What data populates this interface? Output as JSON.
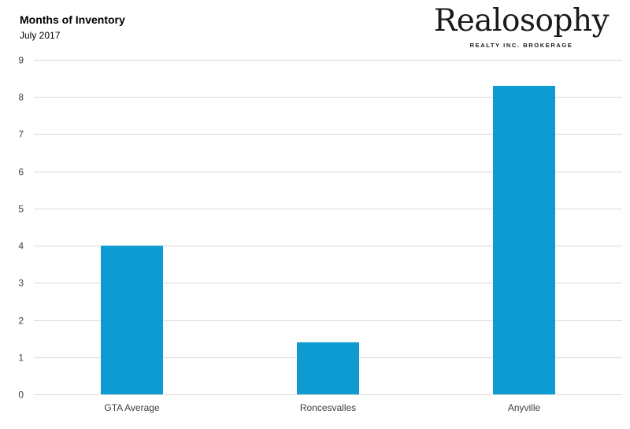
{
  "brand": {
    "name": "Realosophy",
    "tagline": "REALTY INC. BROKERAGE"
  },
  "chart_data": {
    "type": "bar",
    "title": "Months of Inventory",
    "subtitle": "July 2017",
    "categories": [
      "GTA Average",
      "Roncesvalles",
      "Anyville"
    ],
    "values": [
      4.0,
      1.4,
      8.3
    ],
    "xlabel": "",
    "ylabel": "",
    "ylim": [
      0,
      9
    ],
    "yticks": [
      0,
      1,
      2,
      3,
      4,
      5,
      6,
      7,
      8,
      9
    ],
    "grid": true,
    "legend": "none",
    "bar_color": "#0e9bd2"
  }
}
